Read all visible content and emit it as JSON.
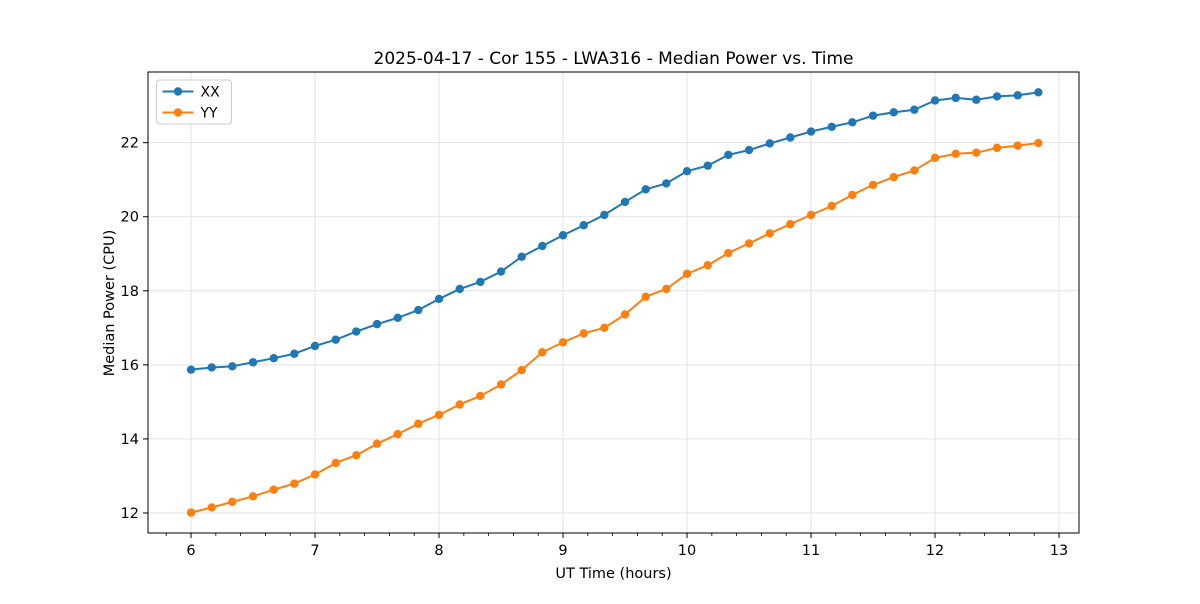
{
  "figure": {
    "background": "#ffffff",
    "spine_color": "#000000",
    "tick_color": "#000000",
    "text_color": "#000000"
  },
  "chart_data": {
    "type": "line",
    "title": "2025-04-17 - Cor 155 - LWA316 - Median Power vs. Time",
    "xlabel": "UT Time (hours)",
    "ylabel": "Median Power (CPU)",
    "xlim": [
      5.653,
      13.161
    ],
    "ylim": [
      11.459,
      23.909
    ],
    "x_major_ticks": [
      6,
      7,
      8,
      9,
      10,
      11,
      12,
      13
    ],
    "x_minor_tick_step": 0.2,
    "y_major_ticks": [
      12,
      14,
      16,
      18,
      20,
      22
    ],
    "grid": true,
    "grid_color": "#e2e2e2",
    "legend_position": "upper-left",
    "legend_border_color": "#cccccc",
    "marker": "circle",
    "x": [
      6.0,
      6.167,
      6.333,
      6.5,
      6.667,
      6.833,
      7.0,
      7.167,
      7.333,
      7.5,
      7.667,
      7.833,
      8.0,
      8.167,
      8.333,
      8.5,
      8.667,
      8.833,
      9.0,
      9.167,
      9.333,
      9.5,
      9.667,
      9.833,
      10.0,
      10.167,
      10.333,
      10.5,
      10.667,
      10.833,
      11.0,
      11.167,
      11.333,
      11.5,
      11.667,
      11.833,
      12.0,
      12.167,
      12.333,
      12.5,
      12.667,
      12.833
    ],
    "series": [
      {
        "name": "XX",
        "color": "#1f77b4",
        "values": [
          15.87,
          15.93,
          15.96,
          16.07,
          16.18,
          16.3,
          16.51,
          16.68,
          16.9,
          17.1,
          17.27,
          17.48,
          17.78,
          18.05,
          18.24,
          18.52,
          18.92,
          19.21,
          19.5,
          19.77,
          20.05,
          20.4,
          20.74,
          20.9,
          21.23,
          21.38,
          21.67,
          21.8,
          21.98,
          22.14,
          22.3,
          22.43,
          22.55,
          22.73,
          22.82,
          22.89,
          23.14,
          23.21,
          23.16,
          23.25,
          23.28,
          23.36
        ]
      },
      {
        "name": "YY",
        "color": "#ff7f0e",
        "values": [
          12.01,
          12.15,
          12.3,
          12.45,
          12.63,
          12.79,
          13.04,
          13.35,
          13.56,
          13.87,
          14.13,
          14.41,
          14.65,
          14.93,
          15.16,
          15.47,
          15.86,
          16.34,
          16.61,
          16.85,
          17.0,
          17.36,
          17.84,
          18.05,
          18.46,
          18.69,
          19.02,
          19.28,
          19.55,
          19.8,
          20.05,
          20.29,
          20.59,
          20.86,
          21.07,
          21.25,
          21.59,
          21.7,
          21.73,
          21.86,
          21.92,
          21.99
        ]
      }
    ]
  }
}
